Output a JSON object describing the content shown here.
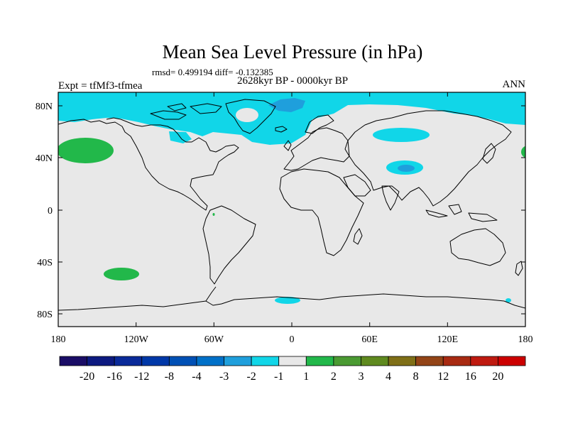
{
  "title": "Mean Sea Level Pressure (in hPa)",
  "stats": "rmsd= 0.499194 diff= -0.132385",
  "period": "2628kyr BP - 0000kyr BP",
  "experiment": "Expt = tfMf3-tfmea",
  "season": "ANN",
  "lat_ticks": [
    "80N",
    "40N",
    "0",
    "40S",
    "80S"
  ],
  "lon_ticks": [
    "180",
    "120W",
    "60W",
    "0",
    "60E",
    "120E",
    "180"
  ],
  "colorbar": {
    "labels": [
      "-20",
      "-16",
      "-12",
      "-8",
      "-4",
      "-3",
      "-2",
      "-1",
      "1",
      "2",
      "3",
      "4",
      "8",
      "12",
      "16",
      "20"
    ],
    "colors": [
      "#1a0d66",
      "#0d1a80",
      "#0a2a99",
      "#0038a8",
      "#0050b5",
      "#0070c8",
      "#1f9fdc",
      "#11d6e8",
      "#e8e8e8",
      "#22b84a",
      "#4a9a32",
      "#5f8a1f",
      "#7f6f17",
      "#934417",
      "#a82a12",
      "#bf1a10",
      "#cc0000"
    ]
  },
  "colors": {
    "background": "#e8e8e8",
    "cyan": "#11d6e8",
    "blue": "#1f9fdc",
    "green": "#22b84a"
  }
}
